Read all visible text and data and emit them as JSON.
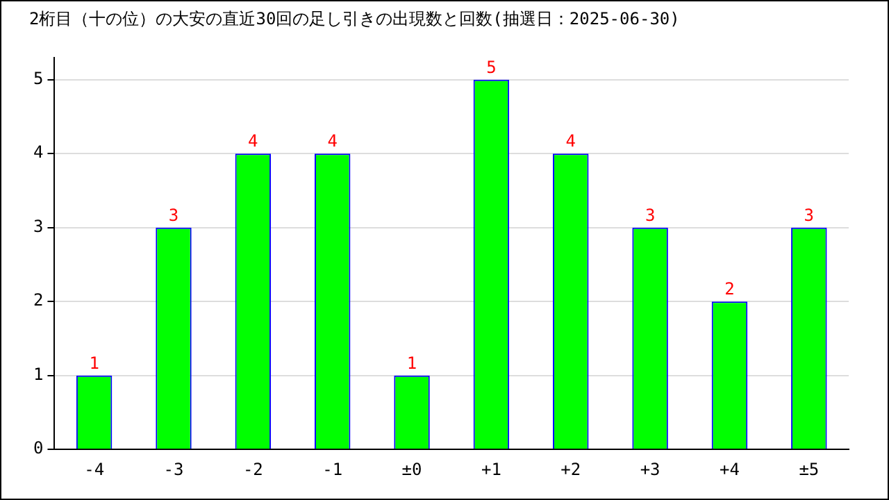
{
  "chart_data": {
    "type": "bar",
    "title": "2桁目（十の位）の大安の直近30回の足し引きの出現数と回数(抽選日：2025-06-30)",
    "categories": [
      "-4",
      "-3",
      "-2",
      "-1",
      "±0",
      "+1",
      "+2",
      "+3",
      "+4",
      "±5"
    ],
    "values": [
      1,
      3,
      4,
      4,
      1,
      5,
      4,
      3,
      2,
      3
    ],
    "color": "#00ff00",
    "ylim": [
      0,
      5.3
    ],
    "yticks": [
      0,
      1,
      2,
      3,
      4,
      5
    ],
    "grid": "y",
    "data_labels": true,
    "legend": false
  }
}
